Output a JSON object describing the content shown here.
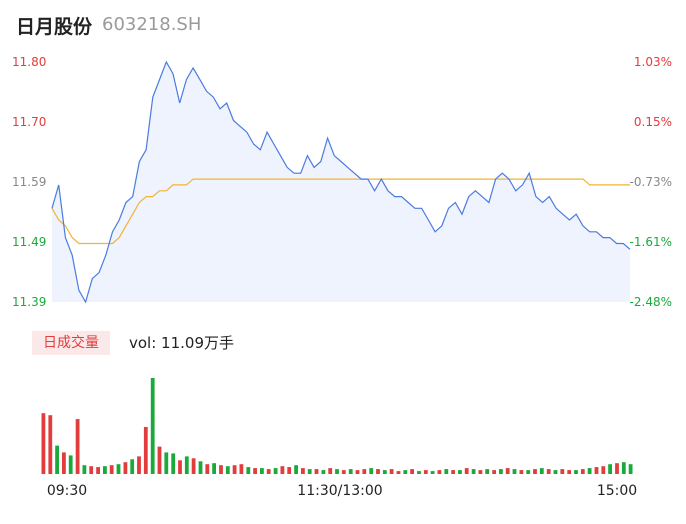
{
  "header": {
    "stock_name": "日月股份",
    "stock_code": "603218.SH"
  },
  "volume_header": {
    "badge_label": "日成交量",
    "summary": "vol: 11.09万手"
  },
  "colors": {
    "price_line": "#4a7be0",
    "price_fill": "#eef3fd",
    "avg_line": "#f2b431",
    "up": "#e23c3c",
    "down": "#1aaa3a",
    "muted": "#888888"
  },
  "chart_data": [
    {
      "type": "line",
      "name": "intraday-price",
      "y_ticks_left": [
        "11.80",
        "11.70",
        "11.59",
        "11.49",
        "11.39"
      ],
      "y_ticks_right": [
        "1.03%",
        "0.15%",
        "-0.73%",
        "-1.61%",
        "-2.48%"
      ],
      "ylim": [
        11.39,
        11.8
      ],
      "x_ticks": [
        "09:30",
        "11:30/13:00",
        "15:00"
      ],
      "series": [
        {
          "role": "price",
          "values": [
            11.55,
            11.59,
            11.5,
            11.47,
            11.41,
            11.39,
            11.43,
            11.44,
            11.47,
            11.51,
            11.53,
            11.56,
            11.57,
            11.63,
            11.65,
            11.74,
            11.77,
            11.8,
            11.78,
            11.73,
            11.77,
            11.79,
            11.77,
            11.75,
            11.74,
            11.72,
            11.73,
            11.7,
            11.69,
            11.68,
            11.66,
            11.65,
            11.68,
            11.66,
            11.64,
            11.62,
            11.61,
            11.61,
            11.64,
            11.62,
            11.63,
            11.67,
            11.64,
            11.63,
            11.62,
            11.61,
            11.6,
            11.6,
            11.58,
            11.6,
            11.58,
            11.57,
            11.57,
            11.56,
            11.55,
            11.55,
            11.53,
            11.51,
            11.52,
            11.55,
            11.56,
            11.54,
            11.57,
            11.58,
            11.57,
            11.56,
            11.6,
            11.61,
            11.6,
            11.58,
            11.59,
            11.61,
            11.57,
            11.56,
            11.57,
            11.55,
            11.54,
            11.53,
            11.54,
            11.52,
            11.51,
            11.51,
            11.5,
            11.5,
            11.49,
            11.49,
            11.48
          ]
        },
        {
          "role": "average",
          "values": [
            11.55,
            11.53,
            11.52,
            11.5,
            11.49,
            11.49,
            11.49,
            11.49,
            11.49,
            11.49,
            11.5,
            11.52,
            11.54,
            11.56,
            11.57,
            11.57,
            11.58,
            11.58,
            11.59,
            11.59,
            11.59,
            11.6,
            11.6,
            11.6,
            11.6,
            11.6,
            11.6,
            11.6,
            11.6,
            11.6,
            11.6,
            11.6,
            11.6,
            11.6,
            11.6,
            11.6,
            11.6,
            11.6,
            11.6,
            11.6,
            11.6,
            11.6,
            11.6,
            11.6,
            11.6,
            11.6,
            11.6,
            11.6,
            11.6,
            11.6,
            11.6,
            11.6,
            11.6,
            11.6,
            11.6,
            11.6,
            11.6,
            11.6,
            11.6,
            11.6,
            11.6,
            11.6,
            11.6,
            11.6,
            11.6,
            11.6,
            11.6,
            11.6,
            11.6,
            11.6,
            11.6,
            11.6,
            11.6,
            11.6,
            11.6,
            11.6,
            11.6,
            11.6,
            11.6,
            11.6,
            11.59,
            11.59,
            11.59,
            11.59,
            11.59,
            11.59,
            11.59
          ]
        }
      ]
    },
    {
      "type": "bar",
      "name": "volume",
      "values": [
        62,
        60,
        29,
        22,
        19,
        56,
        9,
        8,
        7,
        8,
        9,
        10,
        12,
        15,
        18,
        48,
        98,
        28,
        22,
        21,
        14,
        18,
        16,
        13,
        10,
        11,
        9,
        8,
        9,
        10,
        7,
        6,
        6,
        5,
        6,
        8,
        7,
        9,
        6,
        5,
        5,
        4,
        6,
        5,
        4,
        5,
        4,
        5,
        6,
        5,
        4,
        5,
        3,
        4,
        5,
        3,
        4,
        3,
        4,
        5,
        4,
        4,
        6,
        5,
        4,
        5,
        4,
        5,
        6,
        5,
        4,
        4,
        5,
        6,
        5,
        4,
        5,
        4,
        4,
        5,
        6,
        7,
        8,
        10,
        11,
        12,
        10
      ],
      "directions": [
        "u",
        "u",
        "d",
        "u",
        "d",
        "u",
        "d",
        "u",
        "u",
        "d",
        "u",
        "d",
        "u",
        "d",
        "u",
        "u",
        "d",
        "u",
        "d",
        "d",
        "u",
        "d",
        "u",
        "d",
        "u",
        "d",
        "u",
        "d",
        "u",
        "u",
        "d",
        "u",
        "d",
        "u",
        "d",
        "u",
        "u",
        "d",
        "u",
        "d",
        "u",
        "d",
        "u",
        "d",
        "u",
        "d",
        "u",
        "u",
        "d",
        "u",
        "d",
        "u",
        "u",
        "d",
        "u",
        "d",
        "u",
        "d",
        "u",
        "d",
        "u",
        "d",
        "u",
        "d",
        "u",
        "d",
        "u",
        "d",
        "u",
        "d",
        "u",
        "d",
        "u",
        "d",
        "u",
        "d",
        "u",
        "u",
        "d",
        "u",
        "d",
        "u",
        "u",
        "d",
        "u",
        "d",
        "d"
      ],
      "ylim": [
        0,
        100
      ]
    }
  ]
}
